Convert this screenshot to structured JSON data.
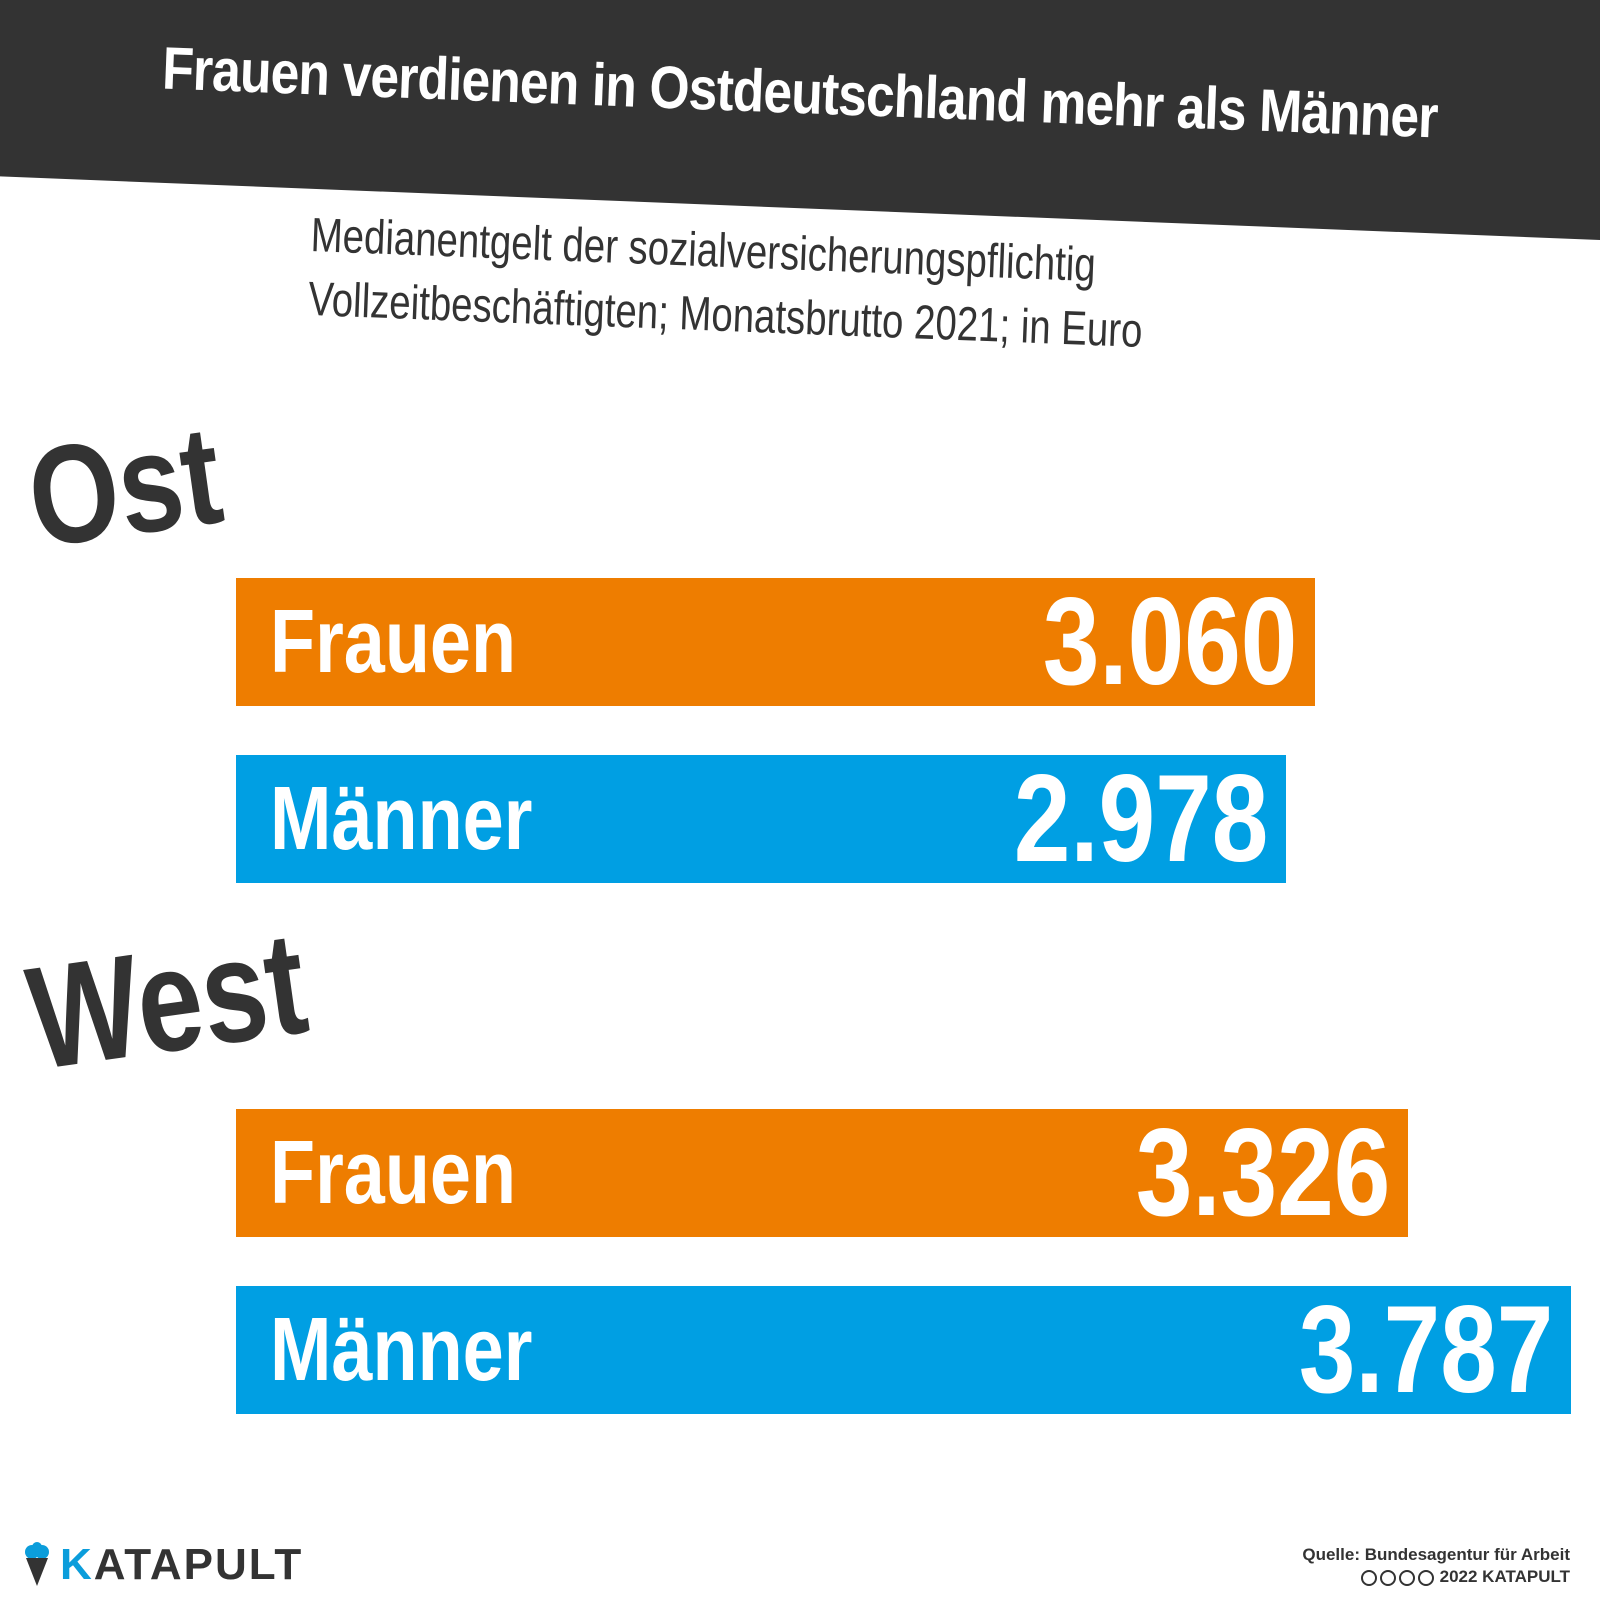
{
  "title": "Frauen verdienen in Ostdeutschland mehr als Männer",
  "subtitle_line1": "Medianentgelt der sozialversicherungspflichtig",
  "subtitle_line2": "Vollzeitbeschäftigten; Monatsbrutto 2021; in Euro",
  "colors": {
    "frauen": "#ee7d00",
    "maenner": "#009fe3",
    "dark": "#333333"
  },
  "chart_data": {
    "type": "bar",
    "orientation": "horizontal",
    "title": "Frauen verdienen in Ostdeutschland mehr als Männer",
    "groups": [
      {
        "name": "Ost",
        "bars": [
          {
            "category": "Frauen",
            "value": 3060,
            "label": "3.060"
          },
          {
            "category": "Männer",
            "value": 2978,
            "label": "2.978"
          }
        ]
      },
      {
        "name": "West",
        "bars": [
          {
            "category": "Frauen",
            "value": 3326,
            "label": "3.326"
          },
          {
            "category": "Männer",
            "value": 3787,
            "label": "3.787"
          }
        ]
      }
    ]
  },
  "footer": {
    "logo_text_k": "K",
    "logo_text_rest": "ATAPULT",
    "source": "Quelle: Bundesagentur für Arbeit",
    "copyright": "2022 KATAPULT",
    "license_icons": [
      "cc-icon",
      "by-icon",
      "nc-icon",
      "nd-icon"
    ]
  }
}
